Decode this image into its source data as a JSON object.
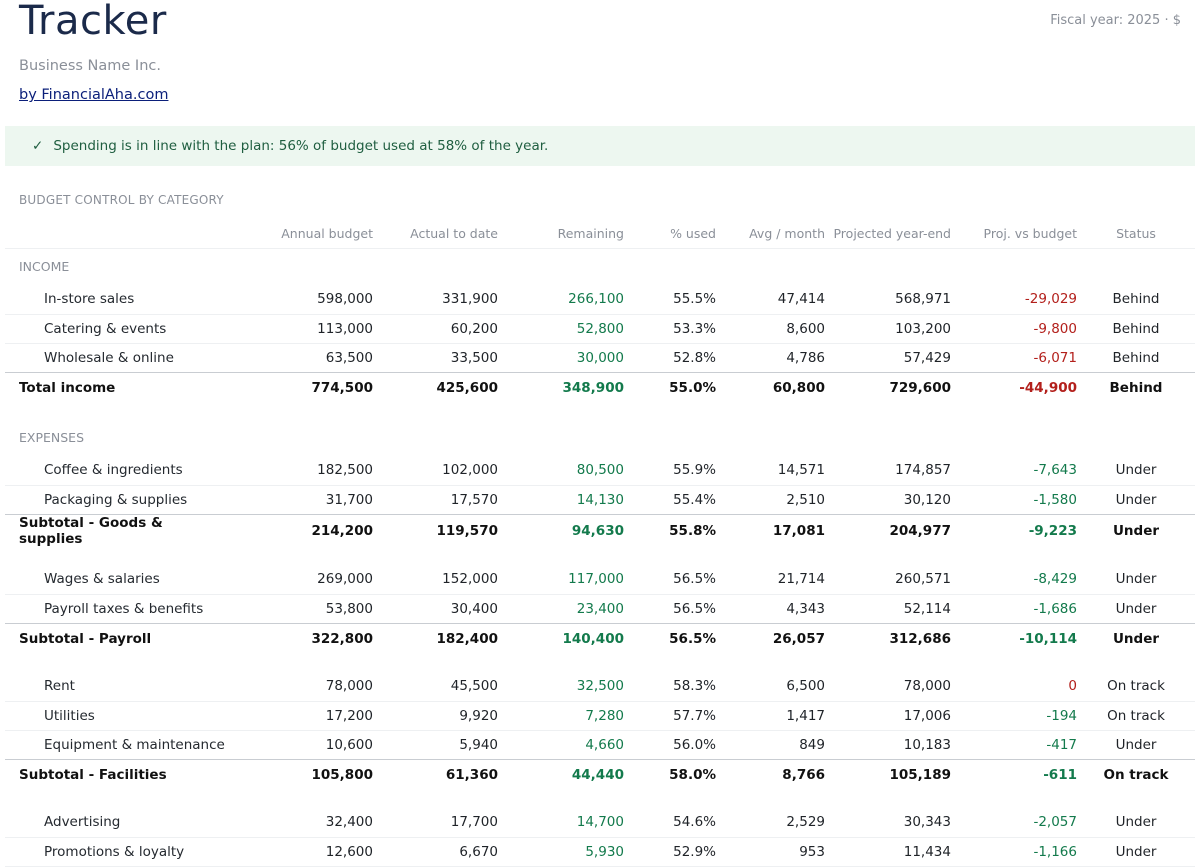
{
  "header": {
    "title": "Tracker",
    "business": "Business Name Inc.",
    "byline": "by FinancialAha.com",
    "fiscal": "Fiscal year: 2025 · $"
  },
  "banner": {
    "check": "✓",
    "message": "Spending is in line with the plan: 56% of budget used at 58% of the year."
  },
  "section_title": "BUDGET CONTROL BY CATEGORY",
  "columns": [
    "Annual budget",
    "Actual to date",
    "Remaining",
    "% used",
    "Avg / month",
    "Projected year-end",
    "Proj. vs budget",
    "Status"
  ],
  "income": {
    "label": "INCOME",
    "rows": [
      [
        "In-store sales",
        "598,000",
        "331,900",
        "266,100",
        "55.5%",
        "47,414",
        "568,971",
        "-29,029",
        "Behind"
      ],
      [
        "Catering & events",
        "113,000",
        "60,200",
        "52,800",
        "53.3%",
        "8,600",
        "103,200",
        "-9,800",
        "Behind"
      ],
      [
        "Wholesale & online",
        "63,500",
        "33,500",
        "30,000",
        "52.8%",
        "4,786",
        "57,429",
        "-6,071",
        "Behind"
      ]
    ],
    "total": [
      "Total income",
      "774,500",
      "425,600",
      "348,900",
      "55.0%",
      "60,800",
      "729,600",
      "-44,900",
      "Behind"
    ]
  },
  "expenses": {
    "label": "EXPENSES",
    "goods": {
      "rows": [
        [
          "Coffee & ingredients",
          "182,500",
          "102,000",
          "80,500",
          "55.9%",
          "14,571",
          "174,857",
          "-7,643",
          "Under"
        ],
        [
          "Packaging & supplies",
          "31,700",
          "17,570",
          "14,130",
          "55.4%",
          "2,510",
          "30,120",
          "-1,580",
          "Under"
        ]
      ],
      "total": [
        "Subtotal - Goods & supplies",
        "214,200",
        "119,570",
        "94,630",
        "55.8%",
        "17,081",
        "204,977",
        "-9,223",
        "Under"
      ]
    },
    "payroll": {
      "rows": [
        [
          "Wages & salaries",
          "269,000",
          "152,000",
          "117,000",
          "56.5%",
          "21,714",
          "260,571",
          "-8,429",
          "Under"
        ],
        [
          "Payroll taxes & benefits",
          "53,800",
          "30,400",
          "23,400",
          "56.5%",
          "4,343",
          "52,114",
          "-1,686",
          "Under"
        ]
      ],
      "total": [
        "Subtotal - Payroll",
        "322,800",
        "182,400",
        "140,400",
        "56.5%",
        "26,057",
        "312,686",
        "-10,114",
        "Under"
      ]
    },
    "facilities": {
      "rows": [
        [
          "Rent",
          "78,000",
          "45,500",
          "32,500",
          "58.3%",
          "6,500",
          "78,000",
          "0",
          "On track"
        ],
        [
          "Utilities",
          "17,200",
          "9,920",
          "7,280",
          "57.7%",
          "1,417",
          "17,006",
          "-194",
          "On track"
        ],
        [
          "Equipment & maintenance",
          "10,600",
          "5,940",
          "4,660",
          "56.0%",
          "849",
          "10,183",
          "-417",
          "Under"
        ]
      ],
      "total": [
        "Subtotal - Facilities",
        "105,800",
        "61,360",
        "44,440",
        "58.0%",
        "8,766",
        "105,189",
        "-611",
        "On track"
      ]
    },
    "marketing": {
      "rows": [
        [
          "Advertising",
          "32,400",
          "17,700",
          "14,700",
          "54.6%",
          "2,529",
          "30,343",
          "-2,057",
          "Under"
        ],
        [
          "Promotions & loyalty",
          "12,600",
          "6,670",
          "5,930",
          "52.9%",
          "953",
          "11,434",
          "-1,166",
          "Under"
        ]
      ]
    }
  }
}
